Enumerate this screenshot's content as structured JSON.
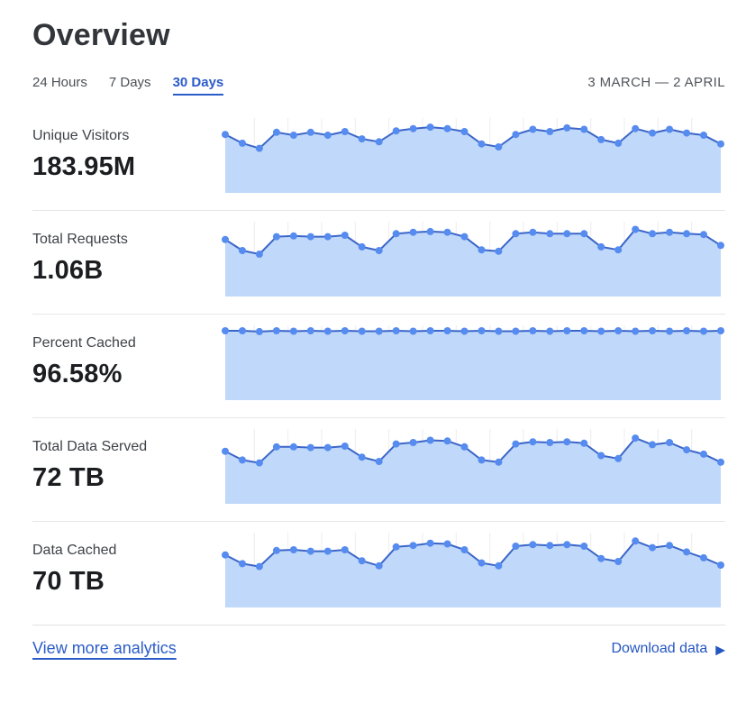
{
  "page": {
    "title": "Overview"
  },
  "time_tabs": {
    "items": [
      {
        "label": "24 Hours",
        "selected": false
      },
      {
        "label": "7 Days",
        "selected": false
      },
      {
        "label": "30 Days",
        "selected": true
      }
    ],
    "date_range": "3 MARCH — 2 APRIL"
  },
  "metrics": [
    {
      "label": "Unique Visitors",
      "value": "183.95M"
    },
    {
      "label": "Total Requests",
      "value": "1.06B"
    },
    {
      "label": "Percent Cached",
      "value": "96.58%"
    },
    {
      "label": "Total Data Served",
      "value": "72 TB"
    },
    {
      "label": "Data Cached",
      "value": "70 TB"
    }
  ],
  "footer": {
    "view_more_label": "View more analytics",
    "download_label": "Download data",
    "download_icon": "play-triangle-icon"
  },
  "chart_style": {
    "area_fill": "#c0d8f9",
    "line": "#3b66c9",
    "dot": "#568bef",
    "gridline": "#ececec"
  },
  "chart_data": [
    {
      "type": "area",
      "title": "Unique Visitors (30 day sparkline)",
      "metric_value": "183.95M",
      "x_range": [
        "3 March",
        "2 April"
      ],
      "points": 30,
      "values_are": "relative daily level, percent of sparkline height (no numeric axis shown)",
      "ylim": [
        0,
        100
      ],
      "grid": "faint vertical gridlines, no axes or tick labels",
      "legend": "none",
      "values": [
        80,
        68,
        61,
        83,
        79,
        83,
        79,
        84,
        74,
        70,
        85,
        88,
        90,
        88,
        84,
        67,
        63,
        80,
        87,
        84,
        89,
        87,
        73,
        68,
        88,
        82,
        87,
        82,
        79,
        67
      ]
    },
    {
      "type": "area",
      "title": "Total Requests (30 day sparkline)",
      "metric_value": "1.06B",
      "x_range": [
        "3 March",
        "2 April"
      ],
      "points": 30,
      "values_are": "relative daily level, percent of sparkline height (no numeric axis shown)",
      "ylim": [
        0,
        100
      ],
      "grid": "faint vertical gridlines, no axes or tick labels",
      "legend": "none",
      "values": [
        78,
        63,
        58,
        82,
        83,
        82,
        82,
        84,
        68,
        63,
        86,
        88,
        89,
        88,
        82,
        64,
        62,
        86,
        88,
        86,
        86,
        86,
        68,
        64,
        92,
        86,
        88,
        86,
        85,
        70
      ]
    },
    {
      "type": "area",
      "title": "Percent Cached (30 day sparkline, nearly flat at top)",
      "metric_value": "96.58%",
      "x_range": [
        "3 March",
        "2 April"
      ],
      "points": 30,
      "values_are": "relative daily level, percent of sparkline height (no numeric axis shown)",
      "ylim": [
        0,
        100
      ],
      "grid": "faint vertical gridlines, no axes or tick labels",
      "legend": "none",
      "values": [
        95,
        95,
        94,
        95,
        94.5,
        95,
        94.5,
        95,
        94.5,
        94.5,
        95,
        94.5,
        95,
        95,
        94.5,
        95,
        94.5,
        94.5,
        95,
        94.5,
        95,
        95,
        94.5,
        95,
        94.5,
        95,
        94.5,
        95,
        94.5,
        95
      ]
    },
    {
      "type": "area",
      "title": "Total Data Served (30 day sparkline)",
      "metric_value": "72 TB",
      "x_range": [
        "3 March",
        "2 April"
      ],
      "points": 30,
      "values_are": "relative daily level, percent of sparkline height (no numeric axis shown)",
      "ylim": [
        0,
        100
      ],
      "grid": "faint vertical gridlines, no axes or tick labels",
      "legend": "none",
      "values": [
        72,
        60,
        56,
        78,
        78,
        77,
        77,
        79,
        64,
        58,
        82,
        84,
        87,
        86,
        78,
        60,
        57,
        82,
        85,
        84,
        85,
        83,
        66,
        62,
        90,
        81,
        84,
        74,
        68,
        57
      ]
    },
    {
      "type": "area",
      "title": "Data Cached (30 day sparkline)",
      "metric_value": "70 TB",
      "x_range": [
        "3 March",
        "2 April"
      ],
      "points": 30,
      "values_are": "relative daily level, percent of sparkline height (no numeric axis shown)",
      "ylim": [
        0,
        100
      ],
      "grid": "faint vertical gridlines, no axes or tick labels",
      "legend": "none",
      "values": [
        72,
        60,
        56,
        78,
        79,
        77,
        77,
        79,
        64,
        57,
        83,
        85,
        88,
        87,
        79,
        61,
        57,
        84,
        86,
        85,
        86,
        84,
        67,
        63,
        91,
        82,
        85,
        76,
        68,
        58
      ]
    }
  ]
}
